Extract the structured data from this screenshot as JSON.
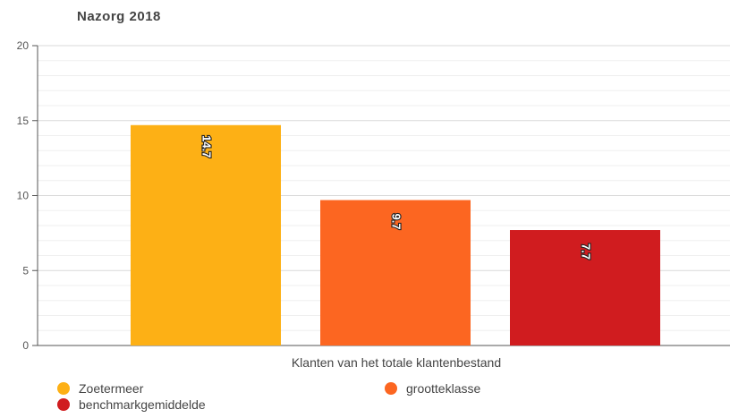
{
  "title": "Nazorg 2018",
  "chart_data": {
    "type": "bar",
    "title": "Nazorg 2018",
    "xlabel": "Klanten van het totale klantenbestand",
    "ylabel": "",
    "ylim": [
      0,
      20
    ],
    "yticks": [
      0,
      5,
      10,
      15,
      20
    ],
    "ytick_labels": [
      "0",
      "5",
      "10",
      "15",
      "20"
    ],
    "grid": true,
    "legend_position": "bottom",
    "series": [
      {
        "name": "Zoetermeer",
        "value": 14.7,
        "label": "14.7",
        "color": "#FDB015"
      },
      {
        "name": "grootteklasse",
        "value": 9.7,
        "label": "9.7",
        "color": "#FC6621"
      },
      {
        "name": "benchmarkgemiddelde",
        "value": 7.7,
        "label": "7.7",
        "color": "#D01C1F"
      }
    ]
  }
}
